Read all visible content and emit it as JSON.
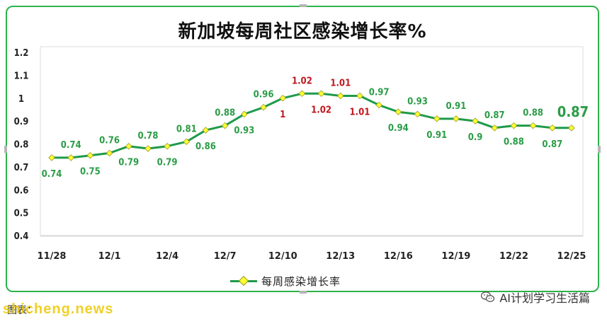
{
  "header": {
    "title": "新加坡每周社区感染增长率%"
  },
  "legend": {
    "label": "每周感染增长率",
    "position": "bottom"
  },
  "footer": {
    "source_text": "图表：",
    "watermark_text": "shicheng.news",
    "wechat_label": "AI计划学习生活篇"
  },
  "colors": {
    "line": "#1f9a4b",
    "marker": "#ffff33",
    "label_green": "#2b9c47",
    "label_red": "#c0171d",
    "border": "#2db34a"
  },
  "chart_data": {
    "type": "line",
    "title": "新加坡每周社区感染增长率%",
    "x_tick_labels": [
      "11/28",
      "12/1",
      "12/4",
      "12/7",
      "12/10",
      "12/13",
      "12/16",
      "12/19",
      "12/22",
      "12/25"
    ],
    "x": [
      "11/28",
      "11/29",
      "11/30",
      "12/1",
      "12/2",
      "12/3",
      "12/4",
      "12/5",
      "12/6",
      "12/7",
      "12/8",
      "12/9",
      "12/10",
      "12/11",
      "12/12",
      "12/13",
      "12/14",
      "12/15",
      "12/16",
      "12/17",
      "12/18",
      "12/19",
      "12/20",
      "12/21",
      "12/22",
      "12/23",
      "12/24",
      "12/25"
    ],
    "series": [
      {
        "name": "每周感染增长率",
        "values": [
          0.74,
          0.74,
          0.75,
          0.76,
          0.79,
          0.78,
          0.79,
          0.81,
          0.86,
          0.88,
          0.93,
          0.96,
          1,
          1.02,
          1.02,
          1.01,
          1.01,
          0.97,
          0.94,
          0.93,
          0.91,
          0.91,
          0.9,
          0.87,
          0.88,
          0.88,
          0.87,
          0.87
        ]
      }
    ],
    "data_labels": [
      {
        "i": 0,
        "text": "0.74",
        "pos": "below",
        "color": "green"
      },
      {
        "i": 1,
        "text": "0.74",
        "pos": "above",
        "color": "green"
      },
      {
        "i": 2,
        "text": "0.75",
        "pos": "below",
        "color": "green"
      },
      {
        "i": 3,
        "text": "0.76",
        "pos": "above",
        "color": "green"
      },
      {
        "i": 4,
        "text": "0.79",
        "pos": "below",
        "color": "green"
      },
      {
        "i": 5,
        "text": "0.78",
        "pos": "above",
        "color": "green"
      },
      {
        "i": 6,
        "text": "0.79",
        "pos": "below",
        "color": "green"
      },
      {
        "i": 7,
        "text": "0.81",
        "pos": "above",
        "color": "green"
      },
      {
        "i": 8,
        "text": "0.86",
        "pos": "below",
        "color": "green"
      },
      {
        "i": 9,
        "text": "0.88",
        "pos": "above",
        "color": "green"
      },
      {
        "i": 10,
        "text": "0.93",
        "pos": "below",
        "color": "green"
      },
      {
        "i": 11,
        "text": "0.96",
        "pos": "above",
        "color": "green"
      },
      {
        "i": 12,
        "text": "1",
        "pos": "below",
        "color": "red"
      },
      {
        "i": 13,
        "text": "1.02",
        "pos": "above",
        "color": "red"
      },
      {
        "i": 14,
        "text": "1.02",
        "pos": "below",
        "color": "red"
      },
      {
        "i": 15,
        "text": "1.01",
        "pos": "above",
        "color": "red"
      },
      {
        "i": 16,
        "text": "1.01",
        "pos": "below",
        "color": "red"
      },
      {
        "i": 17,
        "text": "0.97",
        "pos": "above",
        "color": "green"
      },
      {
        "i": 18,
        "text": "0.94",
        "pos": "below",
        "color": "green"
      },
      {
        "i": 19,
        "text": "0.93",
        "pos": "above",
        "color": "green"
      },
      {
        "i": 20,
        "text": "0.91",
        "pos": "below",
        "color": "green"
      },
      {
        "i": 21,
        "text": "0.91",
        "pos": "above",
        "color": "green"
      },
      {
        "i": 22,
        "text": "0.9",
        "pos": "below",
        "color": "green"
      },
      {
        "i": 23,
        "text": "0.87",
        "pos": "above",
        "color": "green"
      },
      {
        "i": 24,
        "text": "0.88",
        "pos": "below",
        "color": "green"
      },
      {
        "i": 25,
        "text": "0.88",
        "pos": "above",
        "color": "green"
      },
      {
        "i": 26,
        "text": "0.87",
        "pos": "below",
        "color": "green"
      },
      {
        "i": 27,
        "text": "0.87",
        "pos": "above",
        "color": "green",
        "emphasis": true
      }
    ],
    "y_tick_labels": [
      "0.4",
      "0.5",
      "0.6",
      "0.7",
      "0.8",
      "0.9",
      "1",
      "1.1",
      "1.2"
    ],
    "ylim": [
      0.4,
      1.2
    ],
    "xlabel": "",
    "ylabel": "",
    "grid": false,
    "legend_position": "bottom"
  }
}
